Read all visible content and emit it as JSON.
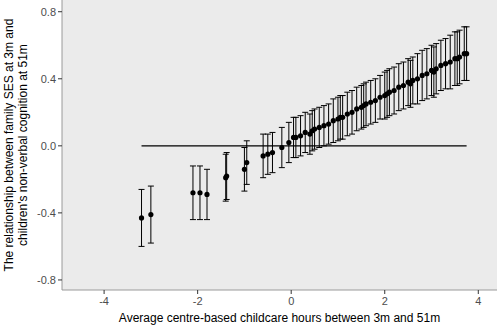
{
  "chart_data": {
    "type": "scatter",
    "xlabel": "Average centre-based childcare hours between 3m and 51m",
    "ylabel": "The relationship between family SES at 3m and\nchildren's non-verbal cognition at 51m",
    "xlim": [
      -4.9,
      4.4
    ],
    "ylim": [
      -0.86,
      0.87
    ],
    "xticks": [
      -4,
      -2,
      0,
      2,
      4
    ],
    "yticks": [
      -0.8,
      -0.4,
      {
        "value": 0,
        "label": "0.0"
      },
      0.4,
      0.8
    ],
    "grid": false,
    "series": [
      {
        "type": "scatter",
        "color": "#000000",
        "marker": "circle",
        "x": [
          -3.2,
          -3.0,
          -2.1,
          -1.95,
          -1.8,
          -1.4,
          -1.38,
          -1.0,
          -0.95,
          -0.6,
          -0.5,
          -0.4,
          -0.2,
          -0.05,
          0.05,
          0.1,
          0.2,
          0.3,
          0.4,
          0.45,
          0.5,
          0.6,
          0.7,
          0.8,
          0.9,
          1.0,
          1.05,
          1.1,
          1.2,
          1.3,
          1.4,
          1.5,
          1.55,
          1.6,
          1.7,
          1.8,
          1.9,
          2.0,
          2.05,
          2.1,
          2.2,
          2.3,
          2.4,
          2.5,
          2.55,
          2.6,
          2.7,
          2.8,
          2.9,
          3.0,
          3.05,
          3.1,
          3.2,
          3.3,
          3.4,
          3.5,
          3.55,
          3.6,
          3.7,
          3.75
        ],
        "values": [
          -0.43,
          -0.41,
          -0.28,
          -0.28,
          -0.29,
          -0.19,
          -0.18,
          -0.14,
          -0.1,
          -0.06,
          -0.05,
          -0.04,
          -0.01,
          0.02,
          0.05,
          0.05,
          0.06,
          0.08,
          0.07,
          0.09,
          0.1,
          0.11,
          0.12,
          0.13,
          0.15,
          0.16,
          0.17,
          0.17,
          0.19,
          0.2,
          0.22,
          0.23,
          0.24,
          0.25,
          0.26,
          0.27,
          0.29,
          0.3,
          0.31,
          0.32,
          0.33,
          0.35,
          0.36,
          0.38,
          0.37,
          0.39,
          0.4,
          0.42,
          0.43,
          0.45,
          0.44,
          0.46,
          0.48,
          0.49,
          0.5,
          0.52,
          0.52,
          0.53,
          0.55,
          0.55
        ],
        "errors": [
          0.17,
          0.17,
          0.16,
          0.16,
          0.15,
          0.14,
          0.14,
          0.13,
          0.13,
          0.13,
          0.12,
          0.12,
          0.12,
          0.12,
          0.12,
          0.12,
          0.12,
          0.12,
          0.12,
          0.12,
          0.12,
          0.12,
          0.12,
          0.12,
          0.13,
          0.13,
          0.13,
          0.13,
          0.13,
          0.13,
          0.13,
          0.13,
          0.13,
          0.13,
          0.13,
          0.13,
          0.13,
          0.14,
          0.14,
          0.14,
          0.14,
          0.14,
          0.14,
          0.14,
          0.14,
          0.14,
          0.15,
          0.15,
          0.15,
          0.15,
          0.15,
          0.15,
          0.15,
          0.15,
          0.16,
          0.16,
          0.16,
          0.16,
          0.16,
          0.16
        ]
      },
      {
        "type": "line",
        "color": "#000000",
        "x": [
          -3.2,
          3.75
        ],
        "values": [
          0,
          0
        ]
      }
    ]
  }
}
